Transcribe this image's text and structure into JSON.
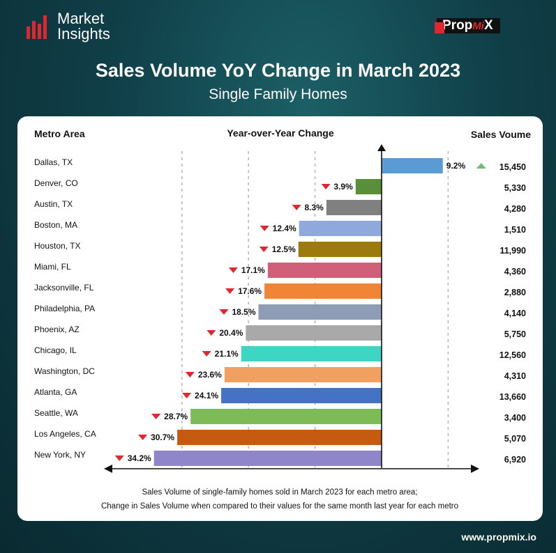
{
  "brand": {
    "name_line1": "Market",
    "name_line2": "Insights",
    "partner": "PropMiX",
    "partner_p1": "Prop",
    "partner_p2": "Mi",
    "partner_p3": "X"
  },
  "header": {
    "title": "Sales Volume YoY Change in March 2023",
    "subtitle": "Single Family Homes"
  },
  "footer": {
    "url": "www.propmix.io"
  },
  "colors": {
    "background": "#103f48",
    "card": "#ffffff",
    "down_marker": "#e0262f",
    "up_marker": "#6dbf6d"
  },
  "chart_data": {
    "type": "bar",
    "orientation": "horizontal",
    "title": "Sales Volume YoY Change in March 2023",
    "subtitle": "Single Family Homes",
    "column_headers": {
      "metro": "Metro Area",
      "change": "Year-over-Year Change",
      "volume": "Sales Voume"
    },
    "categories": [
      "Dallas, TX",
      "Denver, CO",
      "Austin, TX",
      "Boston, MA",
      "Houston, TX",
      "Miami, FL",
      "Jacksonville, FL",
      "Philadelphia, PA",
      "Phoenix, AZ",
      "Chicago, IL",
      "Washington, DC",
      "Atlanta, GA",
      "Seattle, WA",
      "Los Angeles, CA",
      "New York, NY"
    ],
    "values": [
      9.2,
      -3.9,
      -8.3,
      -12.4,
      -12.5,
      -17.1,
      -17.6,
      -18.5,
      -20.4,
      -21.1,
      -23.6,
      -24.1,
      -28.7,
      -30.7,
      -34.2
    ],
    "labels": [
      "9.2%",
      "3.9%",
      "8.3%",
      "12.4%",
      "12.5%",
      "17.1%",
      "17.6%",
      "18.5%",
      "20.4%",
      "21.1%",
      "23.6%",
      "24.1%",
      "28.7%",
      "30.7%",
      "34.2%"
    ],
    "sales_volume": [
      "15,450",
      "5,330",
      "4,280",
      "1,510",
      "11,990",
      "4,360",
      "2,880",
      "4,140",
      "5,750",
      "12,560",
      "4,310",
      "13,660",
      "3,400",
      "5,070",
      "6,920"
    ],
    "bar_colors": [
      "#5b9bd5",
      "#5a8f3a",
      "#808080",
      "#8fa9dc",
      "#9c7a0c",
      "#d0607a",
      "#f08535",
      "#8e9cb5",
      "#a9a9a9",
      "#3fd5c3",
      "#f0a060",
      "#4472c4",
      "#7cbb55",
      "#c55a11",
      "#8e86c9"
    ],
    "unit": "%",
    "xlim": [
      -35,
      12
    ],
    "grid": "dashed vertical reference lines",
    "caption_line1": "Sales Volume of single-family homes sold in March 2023 for each metro area;",
    "caption_line2": "Change in Sales Volume when compared to their values for the same month last year for each metro"
  }
}
